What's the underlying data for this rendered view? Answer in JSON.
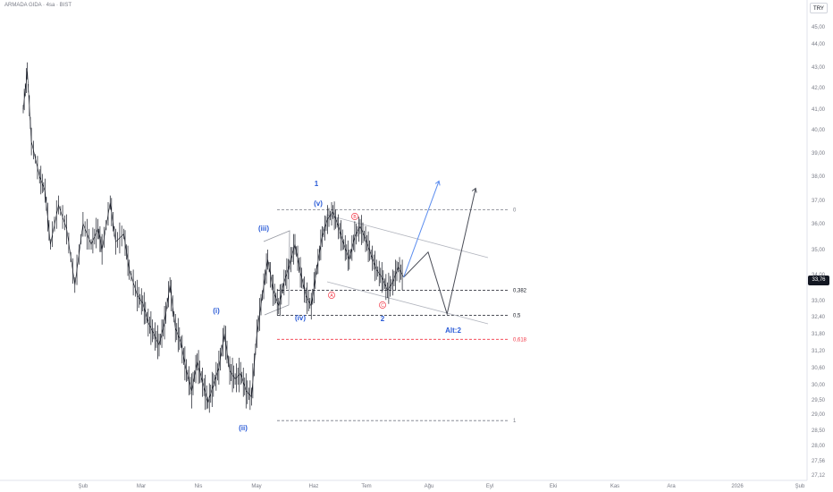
{
  "header": {
    "symbol": "ARMADA GIDA · 4sa · BIST",
    "currency": "TRY"
  },
  "last_price": {
    "label": "33,76",
    "value": 33.76
  },
  "colors": {
    "wave_blue": "#2a5bd7",
    "fib_red": "#f23645",
    "neutral": "#131722",
    "fib_line": "#787b86"
  },
  "chart_data": {
    "type": "line",
    "title": "",
    "price_axis": {
      "ticks": [
        {
          "label": "45,00",
          "value": 45.0
        },
        {
          "label": "44,00",
          "value": 44.0
        },
        {
          "label": "43,00",
          "value": 43.0
        },
        {
          "label": "42,00",
          "value": 42.0
        },
        {
          "label": "41,00",
          "value": 41.0
        },
        {
          "label": "40,00",
          "value": 40.0
        },
        {
          "label": "39,00",
          "value": 39.0
        },
        {
          "label": "38,00",
          "value": 38.0
        },
        {
          "label": "37,00",
          "value": 37.0
        },
        {
          "label": "36,00",
          "value": 36.0
        },
        {
          "label": "35,00",
          "value": 35.0
        },
        {
          "label": "34,00",
          "value": 34.0
        },
        {
          "label": "33,00",
          "value": 33.0
        },
        {
          "label": "32,40",
          "value": 32.4
        },
        {
          "label": "31,80",
          "value": 31.8
        },
        {
          "label": "31,20",
          "value": 31.2
        },
        {
          "label": "30,60",
          "value": 30.6
        },
        {
          "label": "30,00",
          "value": 30.0
        },
        {
          "label": "29,50",
          "value": 29.5
        },
        {
          "label": "29,00",
          "value": 29.0
        },
        {
          "label": "28,50",
          "value": 28.5
        },
        {
          "label": "28,00",
          "value": 28.0
        },
        {
          "label": "27,56",
          "value": 27.56
        },
        {
          "label": "27,12",
          "value": 27.12
        }
      ]
    },
    "time_axis": [
      "Şub",
      "Mar",
      "Nis",
      "May",
      "Haz",
      "Tem",
      "Ağu",
      "Eyl",
      "Eki",
      "Kas",
      "Ara",
      "2026",
      "Şub"
    ],
    "fib_levels": [
      {
        "label": "0",
        "value": 36.6,
        "color": "#787b86"
      },
      {
        "label": "0,382",
        "value": 33.4,
        "color": "#131722"
      },
      {
        "label": "0,5",
        "value": 32.45,
        "color": "#131722"
      },
      {
        "label": "0,618",
        "value": 31.6,
        "color": "#f23645"
      },
      {
        "label": "1",
        "value": 28.8,
        "color": "#787b86"
      }
    ],
    "wave_labels": [
      {
        "text": "(i)",
        "color": "#2a5bd7"
      },
      {
        "text": "(ii)",
        "color": "#2a5bd7"
      },
      {
        "text": "(iii)",
        "color": "#2a5bd7"
      },
      {
        "text": "(iv)",
        "color": "#2a5bd7"
      },
      {
        "text": "(v)",
        "color": "#2a5bd7"
      },
      {
        "text": "1",
        "color": "#2a5bd7"
      },
      {
        "text": "2",
        "color": "#2a5bd7"
      },
      {
        "text": "Alt:2",
        "color": "#2a5bd7"
      }
    ],
    "abc_labels": [
      "A",
      "B",
      "C"
    ],
    "price_path": [
      [
        0,
        41.0
      ],
      [
        3,
        42.8
      ],
      [
        6,
        39.5
      ],
      [
        12,
        38.0
      ],
      [
        16,
        37.4
      ],
      [
        20,
        35.2
      ],
      [
        26,
        36.8
      ],
      [
        32,
        35.8
      ],
      [
        38,
        33.6
      ],
      [
        44,
        36.0
      ],
      [
        50,
        35.2
      ],
      [
        55,
        35.8
      ],
      [
        58,
        35.0
      ],
      [
        64,
        36.9
      ],
      [
        68,
        35.3
      ],
      [
        74,
        35.6
      ],
      [
        78,
        34.2
      ],
      [
        84,
        33.2
      ],
      [
        88,
        32.9
      ],
      [
        92,
        32.2
      ],
      [
        96,
        31.8
      ],
      [
        100,
        31.4
      ],
      [
        104,
        32.2
      ],
      [
        108,
        33.6
      ],
      [
        112,
        32.0
      ],
      [
        116,
        31.5
      ],
      [
        120,
        30.5
      ],
      [
        124,
        29.8
      ],
      [
        128,
        30.8
      ],
      [
        132,
        30.1
      ],
      [
        136,
        29.4
      ],
      [
        140,
        30.0
      ],
      [
        144,
        30.6
      ],
      [
        148,
        31.8
      ],
      [
        152,
        30.5
      ],
      [
        156,
        30.2
      ],
      [
        160,
        30.4
      ],
      [
        164,
        29.8
      ],
      [
        168,
        29.6
      ],
      [
        172,
        31.8
      ],
      [
        176,
        33.2
      ],
      [
        180,
        34.6
      ],
      [
        184,
        33.4
      ],
      [
        188,
        32.8
      ],
      [
        192,
        33.7
      ],
      [
        196,
        34.4
      ],
      [
        200,
        35.2
      ],
      [
        204,
        34.1
      ],
      [
        208,
        33.2
      ],
      [
        212,
        32.8
      ],
      [
        216,
        34.2
      ],
      [
        220,
        35.5
      ],
      [
        224,
        36.2
      ],
      [
        228,
        36.5
      ],
      [
        232,
        35.9
      ],
      [
        236,
        35.2
      ],
      [
        240,
        34.6
      ],
      [
        244,
        35.5
      ],
      [
        248,
        35.9
      ],
      [
        252,
        35.4
      ],
      [
        256,
        34.8
      ],
      [
        260,
        34.2
      ],
      [
        264,
        33.9
      ],
      [
        268,
        33.4
      ],
      [
        272,
        33.7
      ],
      [
        276,
        34.3
      ],
      [
        280,
        33.9
      ]
    ],
    "projections": {
      "main_arrow": [
        [
          280,
          33.9
        ],
        [
          298,
          34.9
        ],
        [
          312,
          32.5
        ],
        [
          333,
          37.5
        ]
      ],
      "alt_arrow": [
        [
          280,
          33.9
        ],
        [
          306,
          37.8
        ]
      ]
    }
  }
}
